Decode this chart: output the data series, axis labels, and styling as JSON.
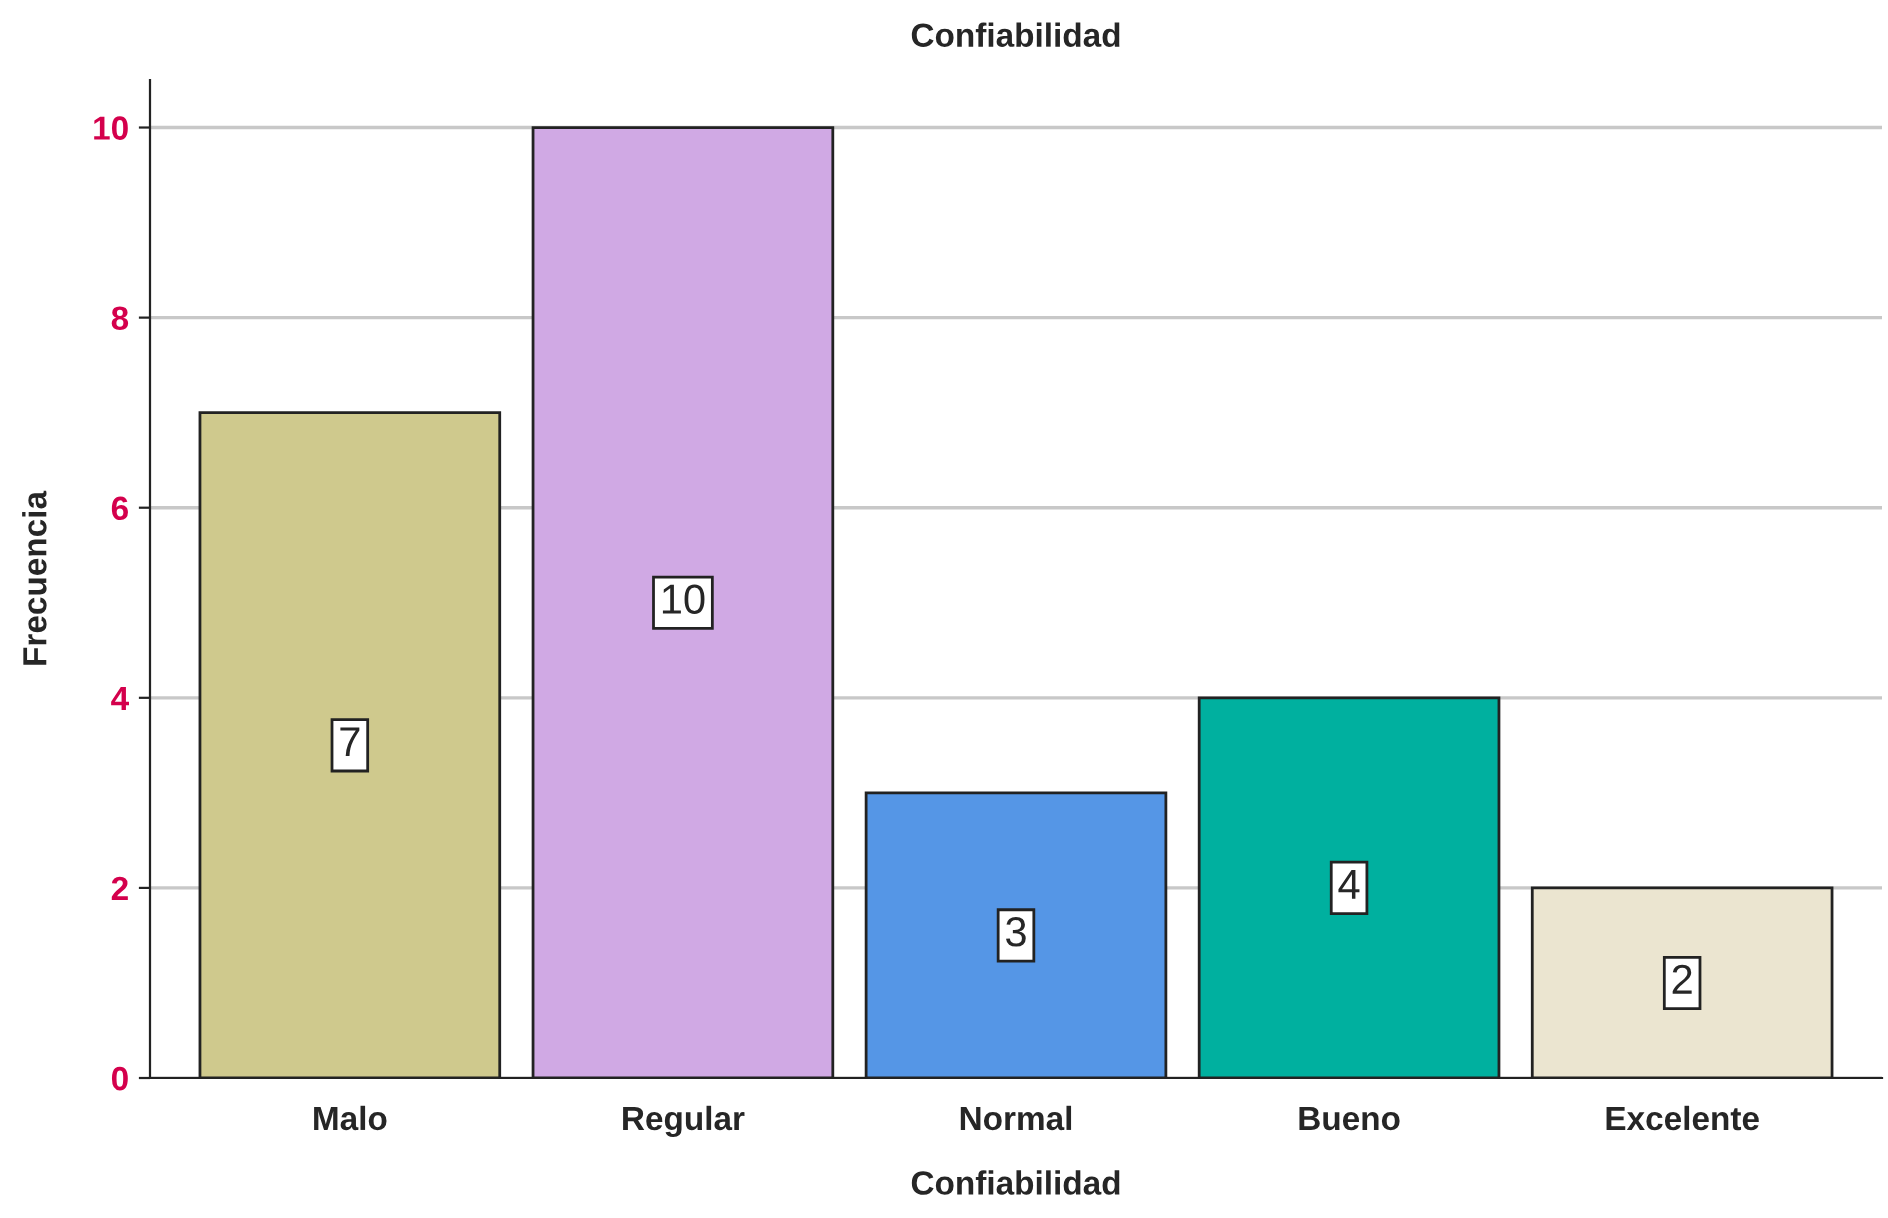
{
  "chart_data": {
    "type": "bar",
    "title": "Confiabilidad",
    "xlabel": "Confiabilidad",
    "ylabel": "Frecuencia",
    "categories": [
      "Malo",
      "Regular",
      "Normal",
      "Bueno",
      "Excelente"
    ],
    "values": [
      7,
      10,
      3,
      4,
      2
    ],
    "colors": [
      "#cfc98d",
      "#d0a9e4",
      "#5596e6",
      "#00b09f",
      "#ebe5d0"
    ],
    "ylim": [
      0,
      10.5
    ],
    "yticks": [
      0,
      2,
      4,
      6,
      8,
      10
    ],
    "grid": "y",
    "data_labels": true
  }
}
